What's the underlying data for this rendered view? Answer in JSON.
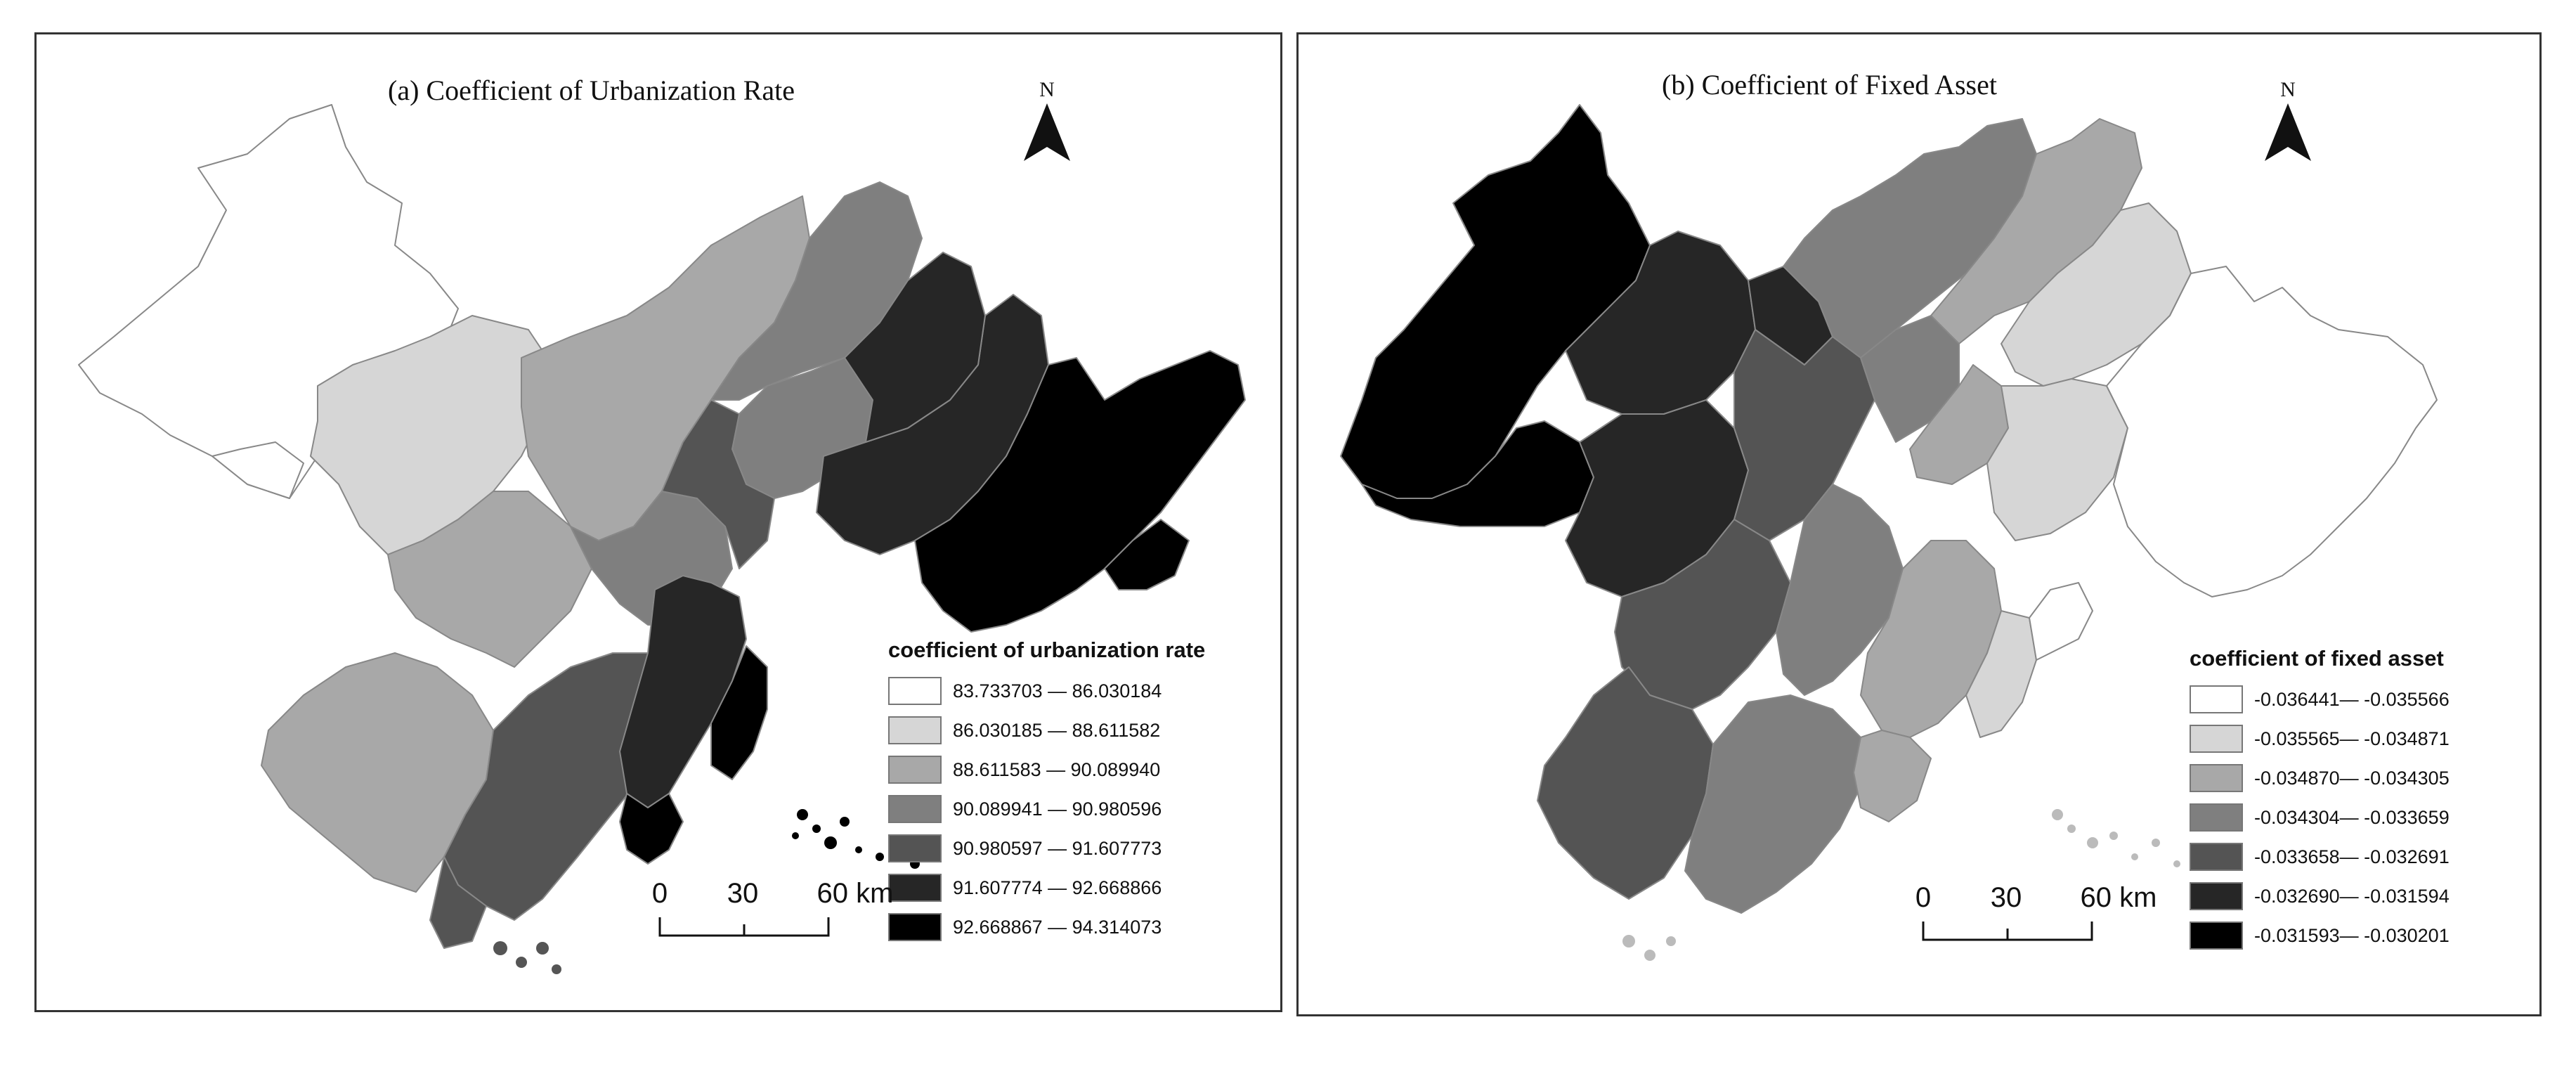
{
  "panels": [
    {
      "title": "(a)  Coefficient of Urbanization Rate",
      "north_label": "N",
      "legend": {
        "title": "coefficient of urbanization rate",
        "classes": [
          {
            "label": "83.733703 — 86.030184",
            "color": "#ffffff"
          },
          {
            "label": "86.030185 — 88.611582",
            "color": "#d6d6d6"
          },
          {
            "label": "88.611583 — 90.089940",
            "color": "#a8a8a8"
          },
          {
            "label": "90.089941 — 90.980596",
            "color": "#7f7f7f"
          },
          {
            "label": "90.980597 — 91.607773",
            "color": "#545454"
          },
          {
            "label": "91.607774 — 92.668866",
            "color": "#262626"
          },
          {
            "label": "92.668867 — 94.314073",
            "color": "#000000"
          }
        ]
      },
      "scale_bar": {
        "ticks": [
          "0",
          "30"
        ],
        "end_label": "60 km"
      }
    },
    {
      "title": "(b)  Coefficient of Fixed Asset",
      "north_label": "N",
      "legend": {
        "title": "coefficient of fixed asset",
        "classes": [
          {
            "label": "-0.036441— -0.035566",
            "color": "#ffffff"
          },
          {
            "label": "-0.035565— -0.034871",
            "color": "#d6d6d6"
          },
          {
            "label": "-0.034870— -0.034305",
            "color": "#a8a8a8"
          },
          {
            "label": "-0.034304— -0.033659",
            "color": "#7f7f7f"
          },
          {
            "label": "-0.033658— -0.032691",
            "color": "#545454"
          },
          {
            "label": "-0.032690— -0.031594",
            "color": "#262626"
          },
          {
            "label": "-0.031593— -0.030201",
            "color": "#000000"
          }
        ]
      },
      "scale_bar": {
        "ticks": [
          "0",
          "30"
        ],
        "end_label": "60 km"
      }
    }
  ]
}
